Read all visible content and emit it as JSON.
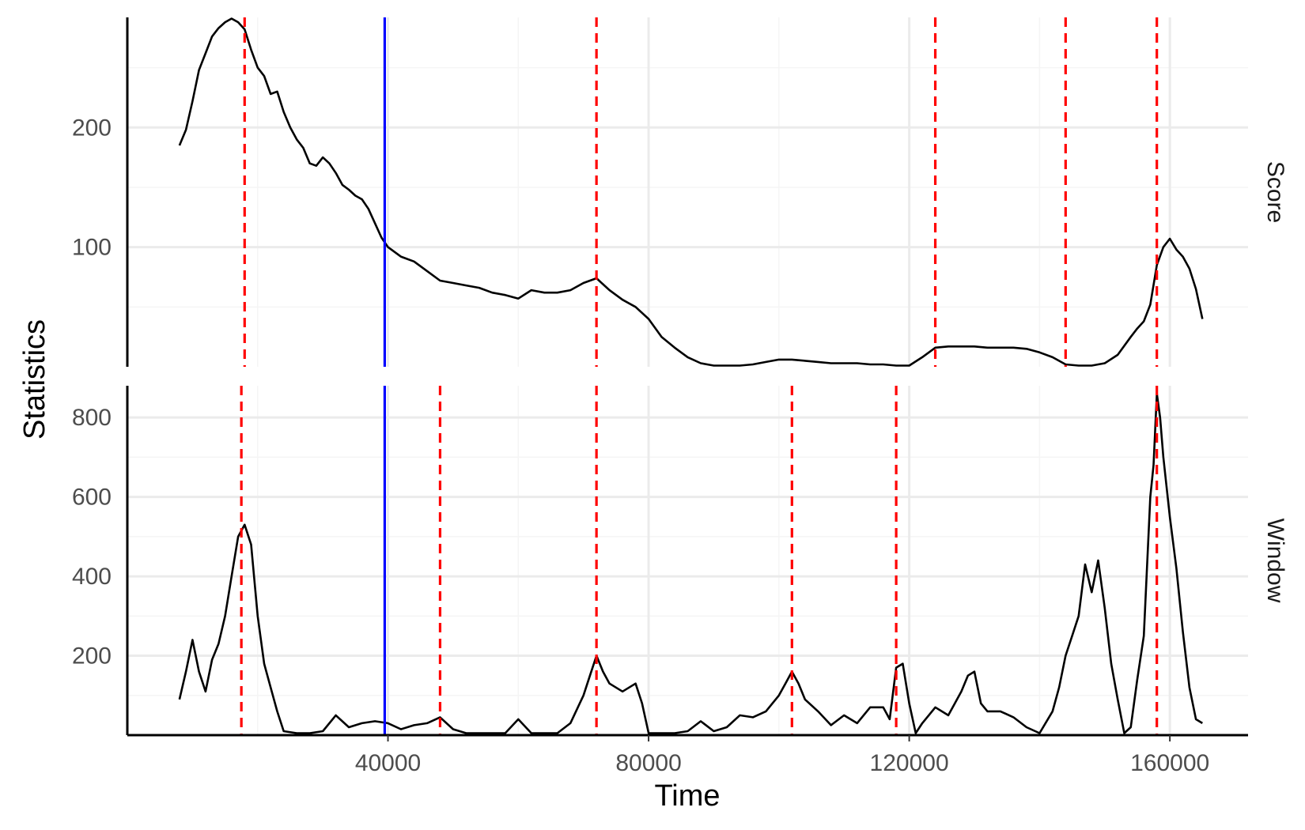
{
  "chart_data": {
    "type": "line",
    "xlabel": "Time",
    "ylabel": "Statistics",
    "xlim": [
      0,
      172000
    ],
    "x_ticks": [
      40000,
      80000,
      120000,
      160000
    ],
    "x_tick_labels": [
      "40000",
      "80000",
      "120000",
      "160000"
    ],
    "grid": true,
    "changepoint_solid_x": 39500,
    "colors": {
      "line": "#000000",
      "solid_marker": "#0000ff",
      "dashed_marker": "#ff0000",
      "grid_major": "#ebebeb",
      "grid_minor": "#f5f5f5"
    },
    "panels": [
      {
        "strip_label": "Score",
        "ylim": [
          0,
          292
        ],
        "y_ticks": [
          100,
          200
        ],
        "y_tick_labels": [
          "100",
          "200"
        ],
        "dashed_x": [
          18000,
          72000,
          124000,
          144000,
          158000
        ],
        "series": {
          "x": [
            8000,
            9000,
            10000,
            11000,
            12000,
            13000,
            14000,
            15000,
            16000,
            17000,
            18000,
            19000,
            20000,
            21000,
            22000,
            23000,
            24000,
            25000,
            26000,
            27000,
            28000,
            29000,
            30000,
            31000,
            32000,
            33000,
            34000,
            35000,
            36000,
            37000,
            38000,
            39000,
            40000,
            42000,
            44000,
            46000,
            48000,
            50000,
            52000,
            54000,
            56000,
            58000,
            60000,
            62000,
            64000,
            66000,
            68000,
            70000,
            72000,
            74000,
            76000,
            78000,
            80000,
            82000,
            84000,
            86000,
            88000,
            90000,
            92000,
            94000,
            96000,
            98000,
            100000,
            102000,
            104000,
            106000,
            108000,
            110000,
            112000,
            114000,
            116000,
            118000,
            120000,
            122000,
            124000,
            126000,
            128000,
            130000,
            132000,
            134000,
            136000,
            138000,
            140000,
            142000,
            144000,
            146000,
            148000,
            150000,
            152000,
            154000,
            155000,
            156000,
            157000,
            158000,
            159000,
            160000,
            161000,
            162000,
            163000,
            164000,
            165000
          ],
          "y": [
            185,
            198,
            222,
            248,
            262,
            276,
            283,
            288,
            291,
            288,
            282,
            265,
            250,
            243,
            228,
            230,
            213,
            200,
            190,
            183,
            170,
            168,
            175,
            170,
            162,
            152,
            148,
            143,
            140,
            132,
            120,
            108,
            100,
            92,
            88,
            80,
            72,
            70,
            68,
            66,
            62,
            60,
            57,
            64,
            62,
            62,
            64,
            70,
            74,
            64,
            56,
            50,
            40,
            25,
            16,
            8,
            3,
            1,
            1,
            1,
            2,
            4,
            6,
            6,
            5,
            4,
            3,
            3,
            3,
            2,
            2,
            1,
            1,
            8,
            16,
            17,
            17,
            17,
            16,
            16,
            16,
            15,
            12,
            8,
            2,
            1,
            1,
            3,
            10,
            25,
            32,
            38,
            52,
            85,
            100,
            107,
            98,
            92,
            82,
            65,
            40
          ]
        }
      },
      {
        "strip_label": "Window",
        "ylim": [
          0,
          880
        ],
        "y_ticks": [
          200,
          400,
          600,
          800
        ],
        "y_tick_labels": [
          "200",
          "400",
          "600",
          "800"
        ],
        "dashed_x": [
          17500,
          48000,
          72000,
          102000,
          118000,
          158000
        ],
        "series": {
          "x": [
            8000,
            9000,
            10000,
            11000,
            12000,
            13000,
            14000,
            15000,
            16000,
            17000,
            18000,
            19000,
            20000,
            21000,
            22000,
            23000,
            24000,
            26000,
            28000,
            30000,
            32000,
            34000,
            36000,
            38000,
            40000,
            42000,
            44000,
            46000,
            48000,
            50000,
            52000,
            54000,
            56000,
            58000,
            60000,
            62000,
            64000,
            66000,
            68000,
            70000,
            71000,
            72000,
            73000,
            74000,
            76000,
            78000,
            79000,
            80000,
            82000,
            84000,
            86000,
            88000,
            90000,
            92000,
            94000,
            96000,
            98000,
            100000,
            101000,
            102000,
            103000,
            104000,
            106000,
            108000,
            110000,
            112000,
            114000,
            116000,
            117000,
            118000,
            119000,
            120000,
            121000,
            122000,
            124000,
            126000,
            128000,
            129000,
            130000,
            131000,
            132000,
            134000,
            136000,
            138000,
            140000,
            142000,
            143000,
            144000,
            145000,
            146000,
            147000,
            148000,
            149000,
            150000,
            151000,
            152000,
            153000,
            154000,
            155000,
            156000,
            157000,
            157500,
            158000,
            158500,
            159000,
            160000,
            161000,
            162000,
            163000,
            164000,
            165000
          ],
          "y": [
            90,
            160,
            240,
            160,
            110,
            190,
            230,
            300,
            400,
            500,
            530,
            480,
            300,
            180,
            120,
            60,
            10,
            5,
            5,
            10,
            50,
            20,
            30,
            35,
            30,
            15,
            25,
            30,
            45,
            15,
            5,
            5,
            5,
            5,
            40,
            5,
            5,
            5,
            30,
            100,
            150,
            200,
            160,
            130,
            110,
            130,
            80,
            5,
            5,
            5,
            10,
            35,
            10,
            20,
            50,
            45,
            60,
            100,
            130,
            160,
            130,
            90,
            60,
            25,
            50,
            30,
            70,
            70,
            40,
            170,
            180,
            80,
            5,
            30,
            70,
            50,
            110,
            150,
            160,
            80,
            60,
            60,
            45,
            20,
            5,
            60,
            120,
            200,
            250,
            300,
            430,
            360,
            440,
            320,
            180,
            90,
            5,
            20,
            140,
            250,
            600,
            680,
            860,
            800,
            700,
            550,
            420,
            260,
            120,
            40,
            30
          ]
        }
      }
    ]
  }
}
